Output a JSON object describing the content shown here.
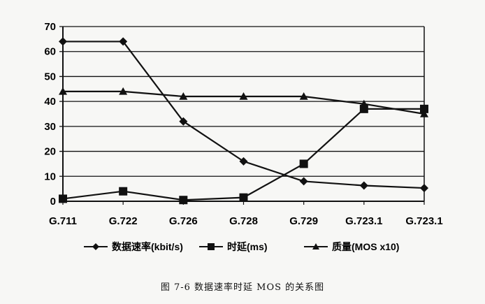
{
  "chart_data": {
    "type": "line",
    "title": "",
    "caption": "图 7-6   数据速率时延 MOS 的关系图",
    "xlabel": "",
    "ylabel": "",
    "ylim": [
      0,
      70
    ],
    "yticks": [
      0,
      10,
      20,
      30,
      40,
      50,
      60,
      70
    ],
    "grid": true,
    "legend_position": "bottom",
    "categories": [
      "G.711",
      "G.722",
      "G.726",
      "G.728",
      "G.729",
      "G.723.1",
      "G.723.1"
    ],
    "series": [
      {
        "name": "数据速率(kbit/s)",
        "marker": "diamond",
        "values": [
          64,
          64,
          32,
          16,
          8,
          6.3,
          5.3
        ]
      },
      {
        "name": "时延(ms)",
        "marker": "square",
        "values": [
          1,
          4,
          0.5,
          1.5,
          15,
          37,
          37
        ]
      },
      {
        "name": "质量(MOS x10)",
        "marker": "triangle",
        "values": [
          44,
          44,
          42,
          42,
          42,
          39,
          35
        ]
      }
    ]
  },
  "caption": "图 7-6   数据速率时延 MOS 的关系图"
}
